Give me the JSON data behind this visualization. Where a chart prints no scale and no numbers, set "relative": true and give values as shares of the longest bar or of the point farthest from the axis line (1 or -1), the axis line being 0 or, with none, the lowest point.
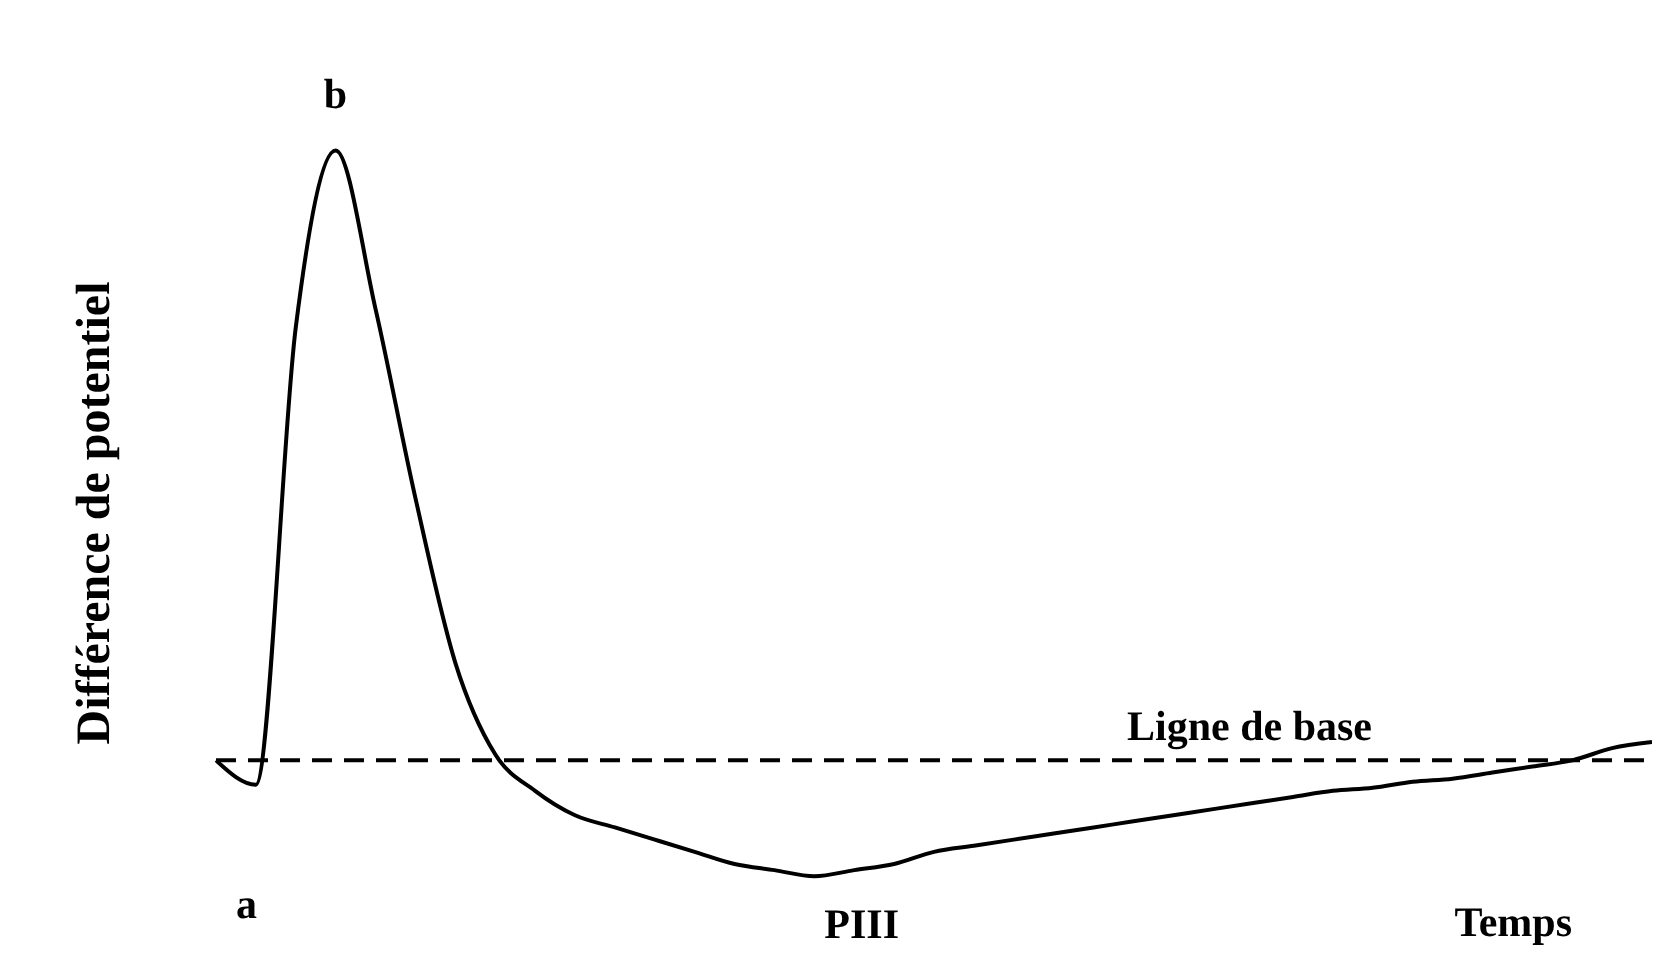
{
  "chart_data": {
    "type": "line",
    "relative": true,
    "xlabel": "Temps",
    "ylabel": "Différence de potentiel",
    "categories": [
      null,
      null,
      null,
      null,
      null,
      null,
      null,
      null,
      null,
      null,
      null,
      null,
      null,
      null,
      null,
      null,
      null,
      null,
      null,
      null,
      null,
      null,
      null,
      null,
      null,
      null,
      null,
      null,
      null,
      null,
      null,
      null,
      null,
      null,
      null,
      null,
      null
    ],
    "series": [
      {
        "color": "#000000",
        "values": [
          0,
          -0.04,
          0.71,
          1,
          0.74,
          0.43,
          0.16,
          0.01,
          -0.05,
          -0.09,
          -0.11,
          -0.13,
          -0.15,
          -0.17,
          -0.18,
          -0.19,
          -0.18,
          -0.17,
          -0.15,
          -0.14,
          -0.13,
          -0.12,
          -0.11,
          -0.1,
          -0.09,
          -0.08,
          -0.07,
          -0.06,
          -0.05,
          -0.045,
          -0.035,
          -0.03,
          -0.02,
          -0.01,
          0,
          0.02,
          0.03
        ]
      }
    ],
    "ref_lines": [
      {
        "axis": "y",
        "value": 0,
        "label": "Ligne de base",
        "color": "#000000",
        "line_style": "dashed"
      }
    ],
    "annotations": [
      "a",
      "b",
      "PIII"
    ],
    "grid": false,
    "legend": false,
    "tick_labels": false,
    "marker": "none",
    "line_style": "solid"
  }
}
